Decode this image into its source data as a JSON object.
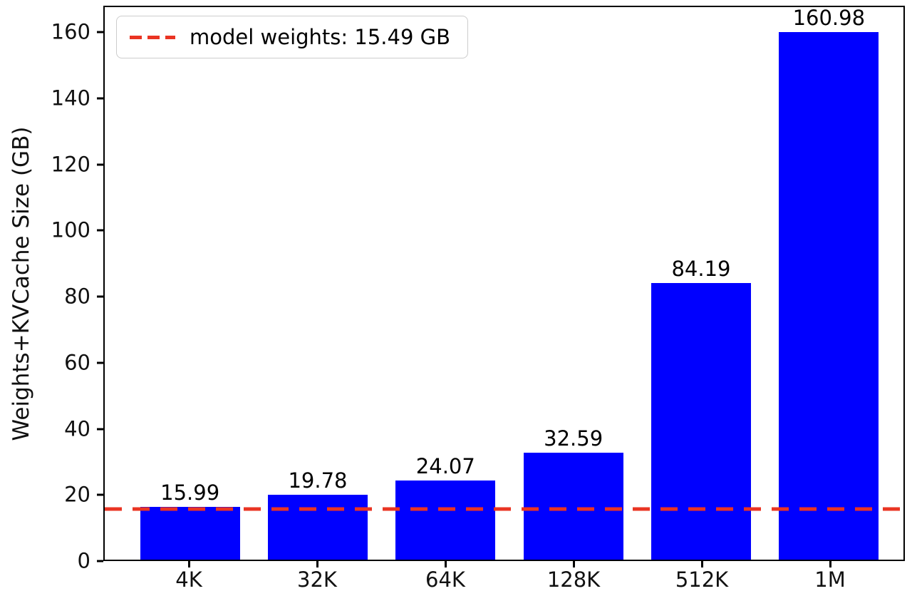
{
  "chart_data": {
    "type": "bar",
    "title": "",
    "categories": [
      "4K",
      "32K",
      "64K",
      "128K",
      "512K",
      "1M"
    ],
    "values": [
      15.99,
      19.78,
      24.07,
      32.59,
      84.19,
      160.98
    ],
    "value_labels": [
      "15.99",
      "19.78",
      "24.07",
      "32.59",
      "84.19",
      "160.98"
    ],
    "xlabel": "",
    "ylabel": "Weights+KVCache Size (GB)",
    "ylim": [
      0,
      168
    ],
    "yticks": [
      0,
      20,
      40,
      60,
      80,
      100,
      120,
      140,
      160
    ],
    "grid": false,
    "bar_color": "#0000ff",
    "reference_line": {
      "value": 15.49,
      "color": "#ea3423",
      "style": "dashed",
      "label": "model weights: 15.49 GB"
    },
    "legend": {
      "position": "upper-left",
      "entries": [
        {
          "label": "model weights: 15.49 GB",
          "color": "#ea3423",
          "line_style": "dashed"
        }
      ]
    }
  }
}
